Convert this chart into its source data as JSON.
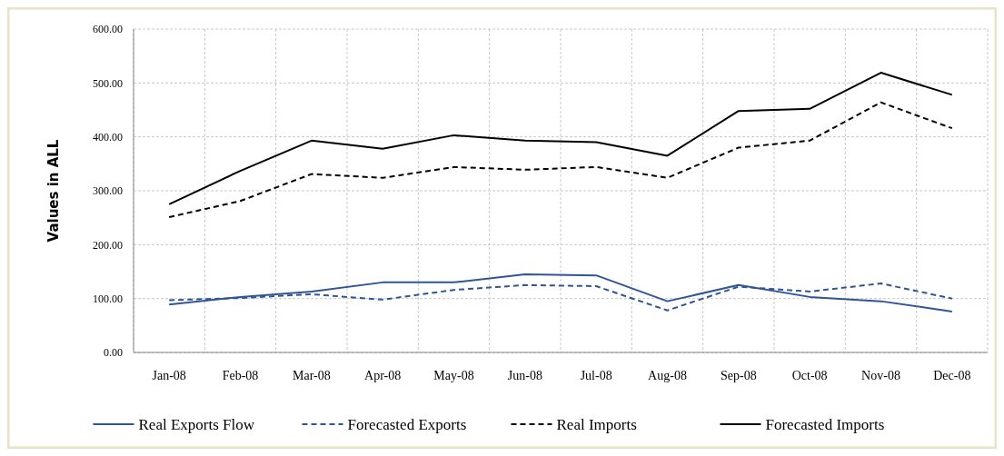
{
  "chart_data": {
    "type": "line",
    "ylabel": "Values in ALL",
    "categories": [
      "Jan-08",
      "Feb-08",
      "Mar-08",
      "Apr-08",
      "May-08",
      "Jun-08",
      "Jul-08",
      "Aug-08",
      "Sep-08",
      "Oct-08",
      "Nov-08",
      "Dec-08"
    ],
    "ylim": [
      0,
      600
    ],
    "yticks": [
      {
        "value": 0,
        "label": "0.00"
      },
      {
        "value": 100,
        "label": "100.00"
      },
      {
        "value": 200,
        "label": "200.00"
      },
      {
        "value": 300,
        "label": "300.00"
      },
      {
        "value": 400,
        "label": "400.00"
      },
      {
        "value": 500,
        "label": "500.00"
      },
      {
        "value": 600,
        "label": "600.00"
      }
    ],
    "grid": true,
    "legend": "bottom",
    "marker": "none",
    "series": [
      {
        "name": "Real Exports Flow",
        "color": "#2f5597",
        "line_style": "solid",
        "values": [
          89,
          103,
          113,
          130,
          130,
          145,
          143,
          95,
          125,
          103,
          95,
          76
        ]
      },
      {
        "name": "Forecasted Exports",
        "color": "#2f5597",
        "line_style": "dashed",
        "values": [
          97,
          101,
          108,
          98,
          116,
          125,
          123,
          78,
          122,
          113,
          128,
          100
        ]
      },
      {
        "name": "Real Imports",
        "color": "#000000",
        "line_style": "dashed",
        "values": [
          251,
          281,
          331,
          324,
          344,
          339,
          344,
          324,
          380,
          393,
          464,
          416
        ]
      },
      {
        "name": "Forecasted Imports",
        "color": "#000000",
        "line_style": "solid",
        "values": [
          275,
          337,
          393,
          378,
          403,
          393,
          390,
          365,
          448,
          452,
          519,
          478
        ]
      }
    ]
  }
}
